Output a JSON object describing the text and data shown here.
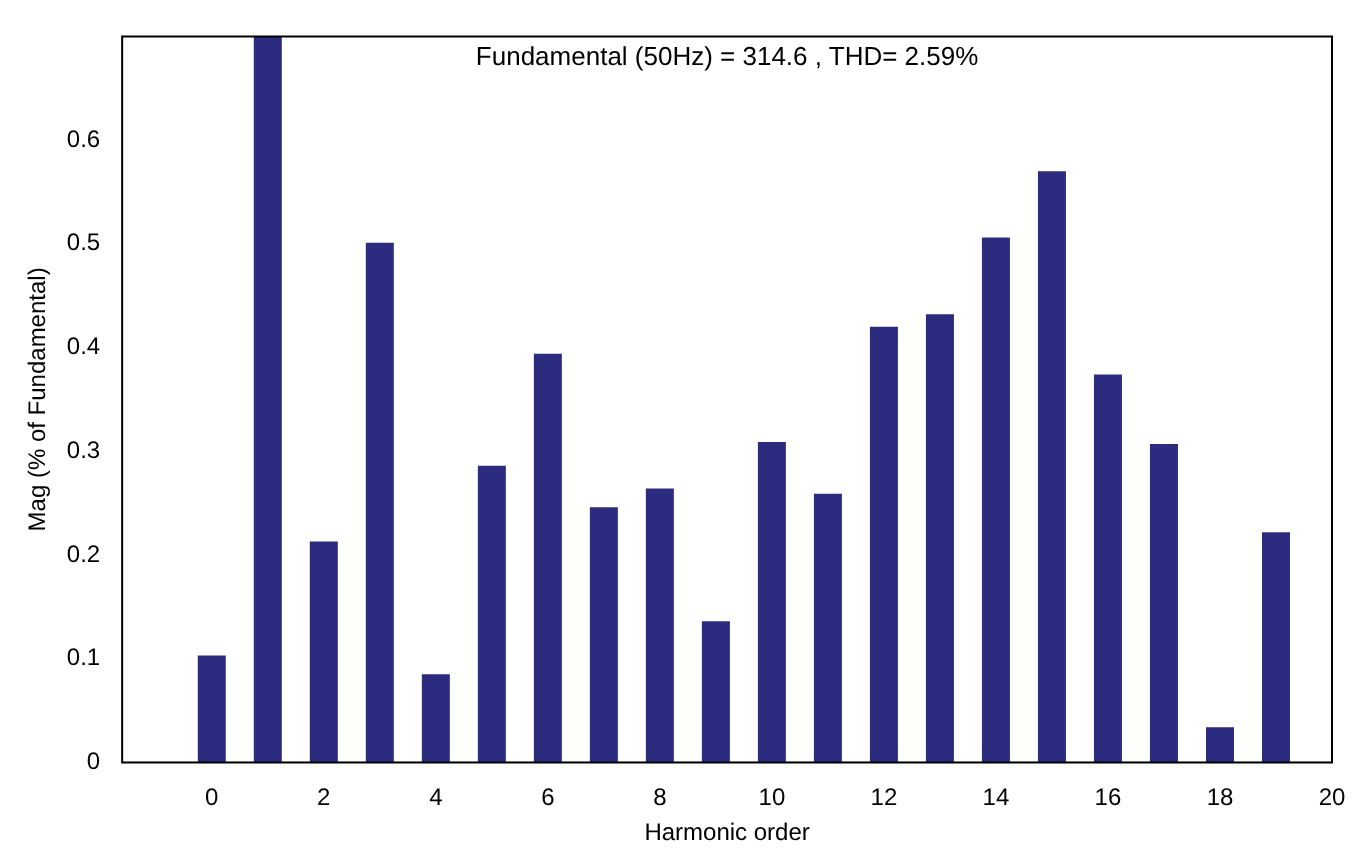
{
  "chart_data": {
    "type": "bar",
    "title": "Fundamental (50Hz) = 314.6 , THD= 2.59%",
    "xlabel": "Harmonic order",
    "ylabel": "Mag (% of Fundamental)",
    "x": [
      0,
      1,
      2,
      3,
      4,
      5,
      6,
      7,
      8,
      9,
      10,
      11,
      12,
      13,
      14,
      15,
      16,
      17,
      18,
      19
    ],
    "values": [
      0.103,
      0.7,
      0.213,
      0.501,
      0.085,
      0.286,
      0.394,
      0.246,
      0.264,
      0.136,
      0.309,
      0.259,
      0.42,
      0.432,
      0.506,
      0.57,
      0.374,
      0.307,
      0.034,
      0.222
    ],
    "color": "#2b2b80",
    "xlim": [
      -1.6,
      20
    ],
    "xticks": [
      0,
      2,
      4,
      6,
      8,
      10,
      12,
      14,
      16,
      18,
      20
    ],
    "ylim": [
      0,
      0.7
    ],
    "yticks": [
      0,
      0.1,
      0.2,
      0.3,
      0.4,
      0.5,
      0.6
    ],
    "grid": false,
    "legend": false
  }
}
